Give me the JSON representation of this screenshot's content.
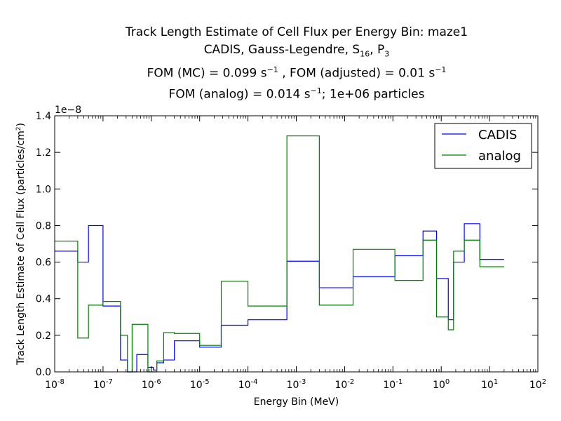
{
  "chart_data": {
    "type": "line",
    "step": true,
    "title": {
      "line1": "Track Length Estimate of Cell Flux per Energy Bin: maze1",
      "line2": {
        "prefix": "CADIS, Gauss-Legendre, S",
        "s_sub": "16",
        "sep": ", P",
        "p_sub": "3"
      },
      "line3": {
        "part1": "FOM (MC) = 0.099 s",
        "exp1": "−1",
        "part2": " , FOM (adjusted) = 0.01 s",
        "exp2": "−1"
      },
      "line4": {
        "part1": "FOM (analog) = 0.014 s",
        "exp1": "−1",
        "part2": ";  1e+06 particles"
      }
    },
    "xlabel": "Energy Bin (MeV)",
    "ylabel": {
      "text": "Track Length Estimate of Cell Flux (particles/cm",
      "sup": "2",
      "close": ")"
    },
    "y_offset_text": "1e−8",
    "xscale": "log",
    "xlim": [
      1e-08,
      100
    ],
    "ylim": [
      0,
      1.4
    ],
    "x_ticks": [
      {
        "base": "10",
        "exp": "-8"
      },
      {
        "base": "10",
        "exp": "-7"
      },
      {
        "base": "10",
        "exp": "-6"
      },
      {
        "base": "10",
        "exp": "-5"
      },
      {
        "base": "10",
        "exp": "-4"
      },
      {
        "base": "10",
        "exp": "-3"
      },
      {
        "base": "10",
        "exp": "-2"
      },
      {
        "base": "10",
        "exp": "-1"
      },
      {
        "base": "10",
        "exp": "0"
      },
      {
        "base": "10",
        "exp": "1"
      },
      {
        "base": "10",
        "exp": "2"
      }
    ],
    "y_ticks": [
      "0.0",
      "0.2",
      "0.4",
      "0.6",
      "0.8",
      "1.0",
      "1.2",
      "1.4"
    ],
    "grid": false,
    "legend_position": "top-right",
    "bin_edges_mev": [
      1e-08,
      3e-08,
      5e-08,
      1e-07,
      2.3e-07,
      3.2e-07,
      4e-07,
      5e-07,
      8.5e-07,
      1.1e-06,
      1.3e-06,
      1.8e-06,
      3e-06,
      1e-05,
      2.8e-05,
      0.0001,
      0.00064,
      0.003,
      0.015,
      0.11,
      0.42,
      0.8,
      1.4,
      1.8,
      3,
      6.3,
      20
    ],
    "series": [
      {
        "name": "CADIS",
        "color": "#0000ff",
        "values": [
          0.66,
          0.6,
          0.8,
          0.36,
          0.065,
          0.0,
          0.0,
          0.095,
          0.025,
          0.01,
          0.05,
          0.065,
          0.17,
          0.135,
          0.255,
          0.285,
          0.605,
          0.46,
          0.52,
          0.635,
          0.77,
          0.51,
          0.285,
          0.6,
          0.81,
          0.615
        ]
      },
      {
        "name": "analog",
        "color": "#008000",
        "values": [
          0.715,
          0.185,
          0.365,
          0.385,
          0.2,
          0.0,
          0.26,
          0.26,
          0.0,
          0.0,
          0.06,
          0.215,
          0.21,
          0.145,
          0.495,
          0.36,
          1.29,
          0.365,
          0.67,
          0.5,
          0.72,
          0.3,
          0.23,
          0.66,
          0.72,
          0.575
        ]
      }
    ]
  }
}
